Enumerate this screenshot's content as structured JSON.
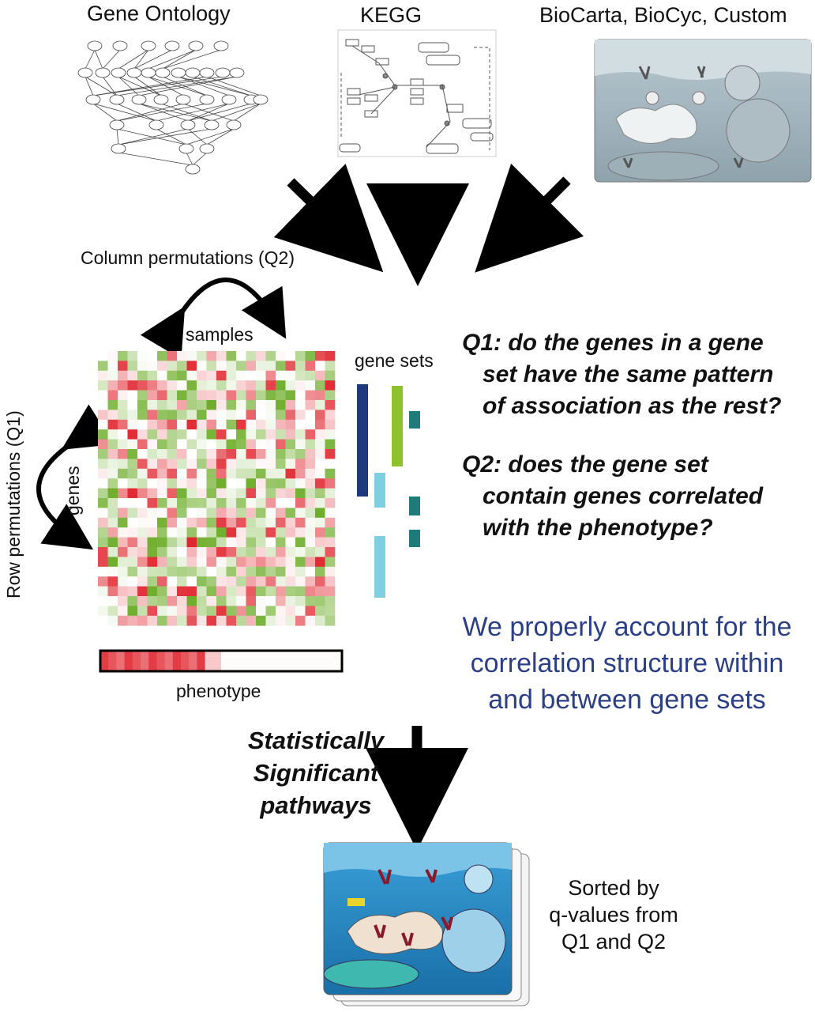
{
  "sources": {
    "go_title": "Gene Ontology",
    "kegg_title": "KEGG",
    "biocarta_title": "BioCarta, BioCyc, Custom"
  },
  "matrix": {
    "column_perm_label": "Column permutations (Q2)",
    "samples_label": "samples",
    "genes_label": "genes",
    "row_perm_label": "Row permutations (Q1)",
    "gene_sets_label": "gene sets",
    "phenotype_label": "phenotype"
  },
  "questions": {
    "q1_lines": [
      "Q1: do the genes in a gene",
      "set have the same pattern",
      "of association as the rest?"
    ],
    "q2_lines": [
      "Q2: does the gene set",
      "contain genes correlated",
      "with the phenotype?"
    ]
  },
  "note_lines": [
    "We properly account for the",
    "correlation structure within",
    "and between gene sets"
  ],
  "result": {
    "sig_lines": [
      "Statistically",
      "Significant",
      "pathways"
    ],
    "sorted_lines": [
      "Sorted by",
      "q-values from",
      "Q1 and Q2"
    ]
  },
  "colors": {
    "note": "#2b3f86",
    "heat_red": "#e0262f",
    "heat_green": "#6fae2c",
    "set_navy": "#1d3b7c",
    "set_lightblue": "#7fcfe0",
    "set_lime": "#8dc22c",
    "set_teal": "#1f7a7a"
  }
}
